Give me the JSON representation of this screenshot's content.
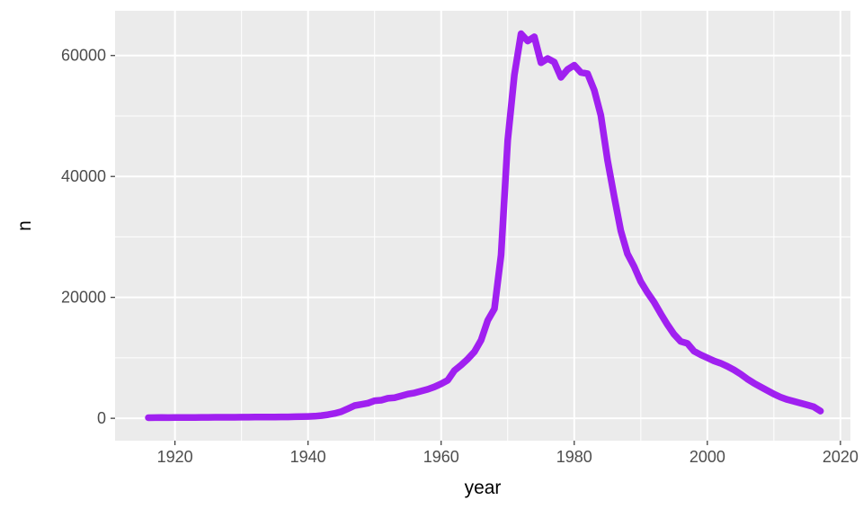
{
  "chart_data": {
    "type": "line",
    "title": "",
    "xlabel": "year",
    "ylabel": "n",
    "series_color": "#A020F0",
    "panel_bg": "#EBEBEB",
    "grid_color": "#FFFFFF",
    "tick_color": "#333333",
    "tick_label_color": "#4D4D4D",
    "legend": "none",
    "grid": "on",
    "xlim": [
      1911,
      2021.5
    ],
    "ylim": [
      -3700,
      67400
    ],
    "x_ticks": [
      1920,
      1940,
      1960,
      1980,
      2000,
      2020
    ],
    "x_minor_ticks": [
      1930,
      1950,
      1970,
      1990,
      2010
    ],
    "y_ticks": [
      0,
      20000,
      40000,
      60000
    ],
    "y_minor_ticks": [
      10000,
      30000,
      50000
    ],
    "x": [
      1916,
      1917,
      1918,
      1919,
      1920,
      1921,
      1922,
      1923,
      1924,
      1925,
      1926,
      1927,
      1928,
      1929,
      1930,
      1931,
      1932,
      1933,
      1934,
      1935,
      1936,
      1937,
      1938,
      1939,
      1940,
      1941,
      1942,
      1943,
      1944,
      1945,
      1946,
      1947,
      1948,
      1949,
      1950,
      1951,
      1952,
      1953,
      1954,
      1955,
      1956,
      1957,
      1958,
      1959,
      1960,
      1961,
      1962,
      1963,
      1964,
      1965,
      1966,
      1967,
      1968,
      1969,
      1970,
      1971,
      1972,
      1973,
      1974,
      1975,
      1976,
      1977,
      1978,
      1979,
      1980,
      1981,
      1982,
      1983,
      1984,
      1985,
      1986,
      1987,
      1988,
      1989,
      1990,
      1991,
      1992,
      1993,
      1994,
      1995,
      1996,
      1997,
      1998,
      1999,
      2000,
      2001,
      2002,
      2003,
      2004,
      2005,
      2006,
      2007,
      2008,
      2009,
      2010,
      2011,
      2012,
      2013,
      2014,
      2015,
      2016,
      2017
    ],
    "y": [
      100,
      110,
      120,
      110,
      120,
      130,
      130,
      140,
      150,
      150,
      160,
      160,
      170,
      170,
      180,
      180,
      190,
      200,
      200,
      210,
      220,
      230,
      250,
      270,
      300,
      350,
      450,
      600,
      800,
      1100,
      1600,
      2100,
      2300,
      2500,
      2900,
      3000,
      3300,
      3400,
      3700,
      4000,
      4200,
      4500,
      4800,
      5200,
      5700,
      6300,
      7900,
      8800,
      9800,
      11000,
      12900,
      16200,
      18100,
      27000,
      46000,
      56800,
      63600,
      62400,
      63100,
      58800,
      59500,
      58900,
      56400,
      57700,
      58400,
      57200,
      57000,
      54300,
      50100,
      42700,
      36700,
      31000,
      27200,
      25100,
      22600,
      20800,
      19200,
      17300,
      15500,
      13900,
      12700,
      12400,
      11100,
      10500,
      10000,
      9500,
      9100,
      8600,
      8000,
      7300,
      6500,
      5800,
      5200,
      4600,
      4000,
      3500,
      3100,
      2800,
      2500,
      2200,
      1900,
      1200
    ]
  }
}
